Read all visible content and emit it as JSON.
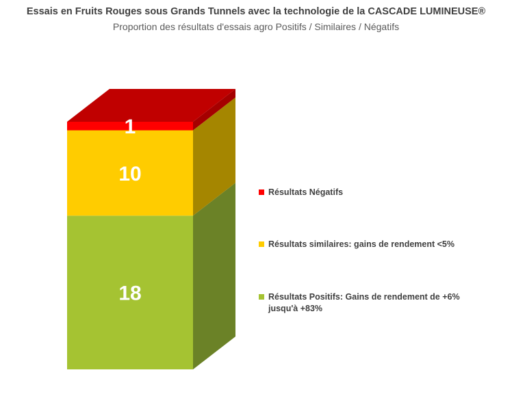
{
  "chart_data": {
    "type": "bar",
    "title": "Essais  en Fruits Rouges  sous Grands Tunnels avec la technologie de la CASCADE LUMINEUSE®",
    "subtitle": "Proportion des résultats d'essais agro Positifs / Similaires / Négatifs",
    "stacked": true,
    "categories": [
      ""
    ],
    "series": [
      {
        "name": "Résultats Positifs: Gains de rendement de +6% jusqu'à +83%",
        "values": [
          18
        ],
        "color": "#a5c332",
        "side_color": "#6b8227"
      },
      {
        "name": "Résultats similaires: gains de rendement <5%",
        "values": [
          10
        ],
        "color": "#ffcc00",
        "side_color": "#a58600"
      },
      {
        "name": "Résultats Négatifs",
        "values": [
          1
        ],
        "color": "#ff0000",
        "side_color": "#a50000",
        "top_color": "#c00000"
      }
    ],
    "legend_position": "right",
    "grid": false
  },
  "legend": {
    "items": [
      {
        "label": "Résultats Négatifs",
        "color": "#ff0000"
      },
      {
        "label": "Résultats similaires: gains de rendement <5%",
        "color": "#ffcc00"
      },
      {
        "label": "Résultats Positifs: Gains de rendement de +6% jusqu'à +83%",
        "color": "#a5c332"
      }
    ]
  }
}
